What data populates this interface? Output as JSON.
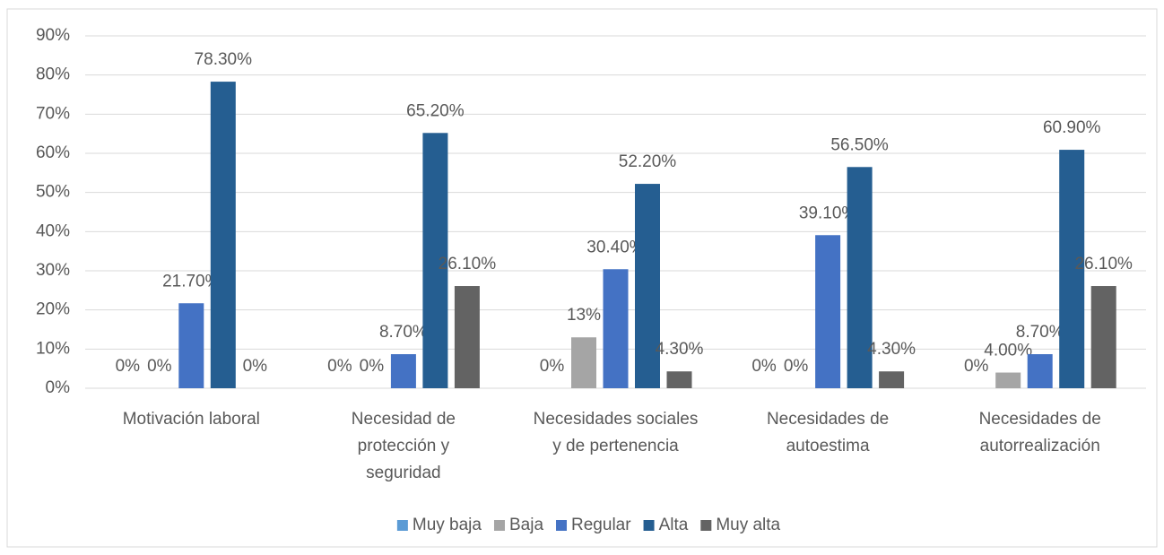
{
  "chart_data": {
    "type": "bar",
    "categories": [
      "Motivación laboral",
      "Necesidad de protección y seguridad",
      "Necesidades sociales y de pertenencia",
      "Necesidades de autoestima",
      "Necesidades de autorrealización"
    ],
    "series": [
      {
        "name": "Muy baja",
        "color": "#5b9bd5",
        "values": [
          0,
          0,
          0,
          0,
          0
        ],
        "value_labels": [
          "0%",
          "0%",
          "0%",
          "0%",
          "0%"
        ]
      },
      {
        "name": "Baja",
        "color": "#a5a5a5",
        "values": [
          0,
          0,
          13,
          0,
          4
        ],
        "value_labels": [
          "0%",
          "0%",
          "13%",
          "0%",
          "4.00%"
        ]
      },
      {
        "name": "Regular",
        "color": "#4472c4",
        "values": [
          21.7,
          8.7,
          30.4,
          39.1,
          8.7
        ],
        "value_labels": [
          "21.70%",
          "8.70%",
          "30.40%",
          "39.10%",
          "8.70%"
        ]
      },
      {
        "name": "Alta",
        "color": "#255e91",
        "values": [
          78.3,
          65.2,
          52.2,
          56.5,
          60.9
        ],
        "value_labels": [
          "78.30%",
          "65.20%",
          "52.20%",
          "56.50%",
          "60.90%"
        ]
      },
      {
        "name": "Muy alta",
        "color": "#636363",
        "values": [
          0,
          26.1,
          4.3,
          4.3,
          26.1
        ],
        "value_labels": [
          "0%",
          "26.10%",
          "4.30%",
          "4.30%",
          "26.10%"
        ]
      }
    ],
    "ylim": [
      0,
      90
    ],
    "yticks": [
      {
        "value": 0,
        "label": "0%"
      },
      {
        "value": 10,
        "label": "10%"
      },
      {
        "value": 20,
        "label": "20%"
      },
      {
        "value": 30,
        "label": "30%"
      },
      {
        "value": 40,
        "label": "40%"
      },
      {
        "value": 50,
        "label": "50%"
      },
      {
        "value": 60,
        "label": "60%"
      },
      {
        "value": 70,
        "label": "70%"
      },
      {
        "value": 80,
        "label": "80%"
      },
      {
        "value": 90,
        "label": "90%"
      }
    ],
    "grid": true,
    "legend": "bottom"
  }
}
